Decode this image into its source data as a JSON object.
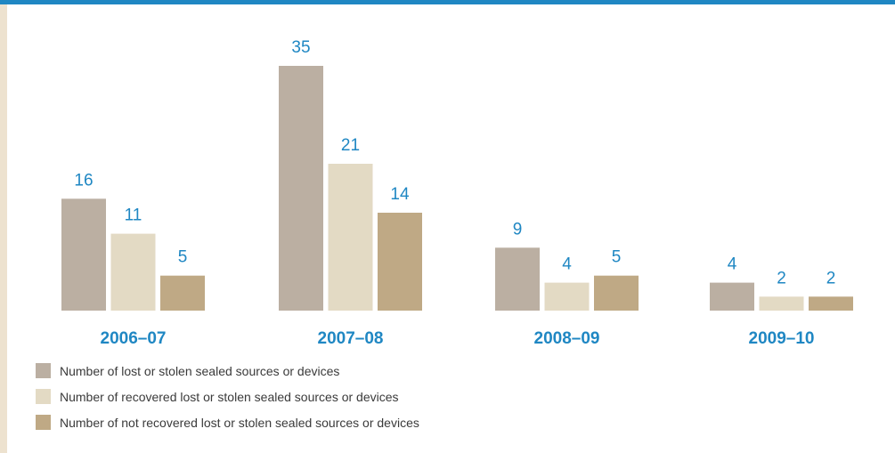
{
  "colors": {
    "accent": "#1f87c3",
    "side_band": "#ede2cf"
  },
  "chart_data": {
    "type": "bar",
    "categories": [
      "2006–07",
      "2007–08",
      "2008–09",
      "2009–10"
    ],
    "series": [
      {
        "name": "Number of lost or stolen sealed sources or devices",
        "values": [
          16,
          35,
          9,
          4
        ],
        "color": "#bbafa2"
      },
      {
        "name": "Number of recovered lost or stolen sealed sources or devices",
        "values": [
          11,
          21,
          4,
          2
        ],
        "color": "#e3dac4"
      },
      {
        "name": "Number of not recovered lost or stolen sealed sources or devices",
        "values": [
          5,
          14,
          5,
          2
        ],
        "color": "#bfa985"
      }
    ],
    "title": "",
    "xlabel": "",
    "ylabel": "",
    "ylim": [
      0,
      35
    ],
    "grid": false,
    "legend_position": "bottom-left",
    "data_labels": true
  }
}
